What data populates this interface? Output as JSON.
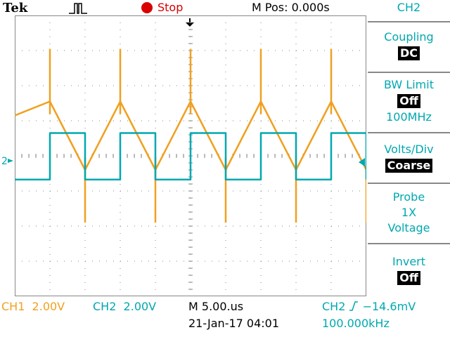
{
  "status_bar": {
    "brand": "Tek",
    "run_state": "Stop",
    "horizontal_position": "M Pos: 0.000s",
    "colors": {
      "run_state": "#d80000"
    }
  },
  "menu": {
    "title": "CH2",
    "items": [
      {
        "label": "Coupling",
        "value": "DC"
      },
      {
        "label": "BW Limit",
        "value": "Off",
        "extra": "100MHz"
      },
      {
        "label": "Volts/Div",
        "value": "Coarse"
      },
      {
        "label": "Probe",
        "lines": [
          "1X",
          "Voltage"
        ]
      },
      {
        "label": "Invert",
        "value": "Off"
      }
    ]
  },
  "readouts": {
    "ch1": "CH1  2.00V",
    "ch2": "CH2  2.00V",
    "timebase": "M 5.00.us",
    "timestamp": "21-Jan-17 04:01",
    "trigger_src": "CH2",
    "trigger_level": "−14.6mV",
    "trigger_freq": "100.000kHz"
  },
  "markers": {
    "ch2_ground": "2"
  },
  "colors": {
    "ch1": "#f0a020",
    "ch2": "#00a8b0",
    "grid": "#888888"
  },
  "chart_data": {
    "type": "line",
    "series": [
      {
        "channel": "CH1",
        "shape": "triangle",
        "color": "#f0a020",
        "x": [
          0,
          5,
          10,
          15,
          20,
          25,
          30,
          35,
          40,
          45,
          50
        ],
        "y": [
          2.3,
          3.1,
          -0.8,
          3.1,
          -0.8,
          3.1,
          -0.8,
          3.1,
          -0.8,
          3.1,
          -0.8
        ]
      },
      {
        "channel": "CH2",
        "shape": "square",
        "color": "#00a8b0",
        "x": [
          0,
          5,
          10,
          15,
          20,
          25,
          30,
          35,
          40,
          45,
          50
        ],
        "y": [
          -1.35,
          1.3,
          -1.35,
          1.3,
          -1.35,
          1.3,
          -1.35,
          1.3,
          -1.35,
          1.3,
          -1.35
        ]
      }
    ],
    "xlim": [
      0,
      50
    ],
    "ylim": [
      -8,
      8
    ],
    "grid": true
  }
}
